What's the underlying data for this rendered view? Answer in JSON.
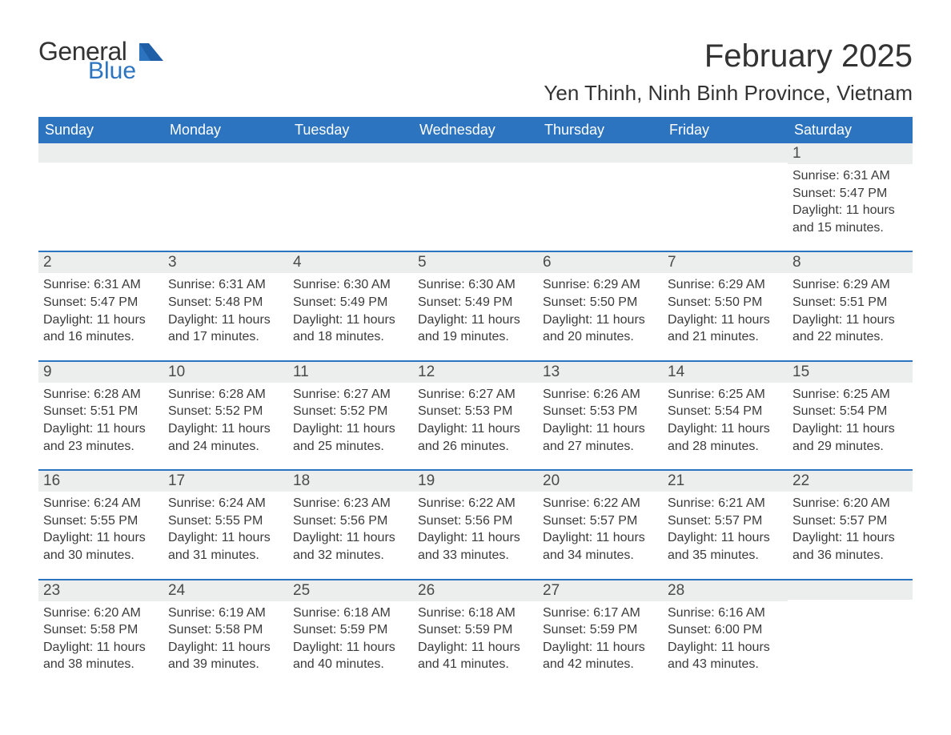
{
  "brand": {
    "word1": "General",
    "word2": "Blue",
    "logo_color": "#2c74c0"
  },
  "header": {
    "month_title": "February 2025",
    "location": "Yen Thinh, Ninh Binh Province, Vietnam"
  },
  "colors": {
    "header_bg": "#2c74c0",
    "header_text": "#ffffff",
    "day_header_bg": "#eceded",
    "text": "#3a3a3a",
    "page_bg": "#ffffff",
    "row_divider": "#2c74c0"
  },
  "calendar": {
    "day_names": [
      "Sunday",
      "Monday",
      "Tuesday",
      "Wednesday",
      "Thursday",
      "Friday",
      "Saturday"
    ],
    "weeks": [
      [
        null,
        null,
        null,
        null,
        null,
        null,
        {
          "n": "1",
          "sunrise": "Sunrise: 6:31 AM",
          "sunset": "Sunset: 5:47 PM",
          "daylight": "Daylight: 11 hours and 15 minutes."
        }
      ],
      [
        {
          "n": "2",
          "sunrise": "Sunrise: 6:31 AM",
          "sunset": "Sunset: 5:47 PM",
          "daylight": "Daylight: 11 hours and 16 minutes."
        },
        {
          "n": "3",
          "sunrise": "Sunrise: 6:31 AM",
          "sunset": "Sunset: 5:48 PM",
          "daylight": "Daylight: 11 hours and 17 minutes."
        },
        {
          "n": "4",
          "sunrise": "Sunrise: 6:30 AM",
          "sunset": "Sunset: 5:49 PM",
          "daylight": "Daylight: 11 hours and 18 minutes."
        },
        {
          "n": "5",
          "sunrise": "Sunrise: 6:30 AM",
          "sunset": "Sunset: 5:49 PM",
          "daylight": "Daylight: 11 hours and 19 minutes."
        },
        {
          "n": "6",
          "sunrise": "Sunrise: 6:29 AM",
          "sunset": "Sunset: 5:50 PM",
          "daylight": "Daylight: 11 hours and 20 minutes."
        },
        {
          "n": "7",
          "sunrise": "Sunrise: 6:29 AM",
          "sunset": "Sunset: 5:50 PM",
          "daylight": "Daylight: 11 hours and 21 minutes."
        },
        {
          "n": "8",
          "sunrise": "Sunrise: 6:29 AM",
          "sunset": "Sunset: 5:51 PM",
          "daylight": "Daylight: 11 hours and 22 minutes."
        }
      ],
      [
        {
          "n": "9",
          "sunrise": "Sunrise: 6:28 AM",
          "sunset": "Sunset: 5:51 PM",
          "daylight": "Daylight: 11 hours and 23 minutes."
        },
        {
          "n": "10",
          "sunrise": "Sunrise: 6:28 AM",
          "sunset": "Sunset: 5:52 PM",
          "daylight": "Daylight: 11 hours and 24 minutes."
        },
        {
          "n": "11",
          "sunrise": "Sunrise: 6:27 AM",
          "sunset": "Sunset: 5:52 PM",
          "daylight": "Daylight: 11 hours and 25 minutes."
        },
        {
          "n": "12",
          "sunrise": "Sunrise: 6:27 AM",
          "sunset": "Sunset: 5:53 PM",
          "daylight": "Daylight: 11 hours and 26 minutes."
        },
        {
          "n": "13",
          "sunrise": "Sunrise: 6:26 AM",
          "sunset": "Sunset: 5:53 PM",
          "daylight": "Daylight: 11 hours and 27 minutes."
        },
        {
          "n": "14",
          "sunrise": "Sunrise: 6:25 AM",
          "sunset": "Sunset: 5:54 PM",
          "daylight": "Daylight: 11 hours and 28 minutes."
        },
        {
          "n": "15",
          "sunrise": "Sunrise: 6:25 AM",
          "sunset": "Sunset: 5:54 PM",
          "daylight": "Daylight: 11 hours and 29 minutes."
        }
      ],
      [
        {
          "n": "16",
          "sunrise": "Sunrise: 6:24 AM",
          "sunset": "Sunset: 5:55 PM",
          "daylight": "Daylight: 11 hours and 30 minutes."
        },
        {
          "n": "17",
          "sunrise": "Sunrise: 6:24 AM",
          "sunset": "Sunset: 5:55 PM",
          "daylight": "Daylight: 11 hours and 31 minutes."
        },
        {
          "n": "18",
          "sunrise": "Sunrise: 6:23 AM",
          "sunset": "Sunset: 5:56 PM",
          "daylight": "Daylight: 11 hours and 32 minutes."
        },
        {
          "n": "19",
          "sunrise": "Sunrise: 6:22 AM",
          "sunset": "Sunset: 5:56 PM",
          "daylight": "Daylight: 11 hours and 33 minutes."
        },
        {
          "n": "20",
          "sunrise": "Sunrise: 6:22 AM",
          "sunset": "Sunset: 5:57 PM",
          "daylight": "Daylight: 11 hours and 34 minutes."
        },
        {
          "n": "21",
          "sunrise": "Sunrise: 6:21 AM",
          "sunset": "Sunset: 5:57 PM",
          "daylight": "Daylight: 11 hours and 35 minutes."
        },
        {
          "n": "22",
          "sunrise": "Sunrise: 6:20 AM",
          "sunset": "Sunset: 5:57 PM",
          "daylight": "Daylight: 11 hours and 36 minutes."
        }
      ],
      [
        {
          "n": "23",
          "sunrise": "Sunrise: 6:20 AM",
          "sunset": "Sunset: 5:58 PM",
          "daylight": "Daylight: 11 hours and 38 minutes."
        },
        {
          "n": "24",
          "sunrise": "Sunrise: 6:19 AM",
          "sunset": "Sunset: 5:58 PM",
          "daylight": "Daylight: 11 hours and 39 minutes."
        },
        {
          "n": "25",
          "sunrise": "Sunrise: 6:18 AM",
          "sunset": "Sunset: 5:59 PM",
          "daylight": "Daylight: 11 hours and 40 minutes."
        },
        {
          "n": "26",
          "sunrise": "Sunrise: 6:18 AM",
          "sunset": "Sunset: 5:59 PM",
          "daylight": "Daylight: 11 hours and 41 minutes."
        },
        {
          "n": "27",
          "sunrise": "Sunrise: 6:17 AM",
          "sunset": "Sunset: 5:59 PM",
          "daylight": "Daylight: 11 hours and 42 minutes."
        },
        {
          "n": "28",
          "sunrise": "Sunrise: 6:16 AM",
          "sunset": "Sunset: 6:00 PM",
          "daylight": "Daylight: 11 hours and 43 minutes."
        },
        null
      ]
    ]
  }
}
